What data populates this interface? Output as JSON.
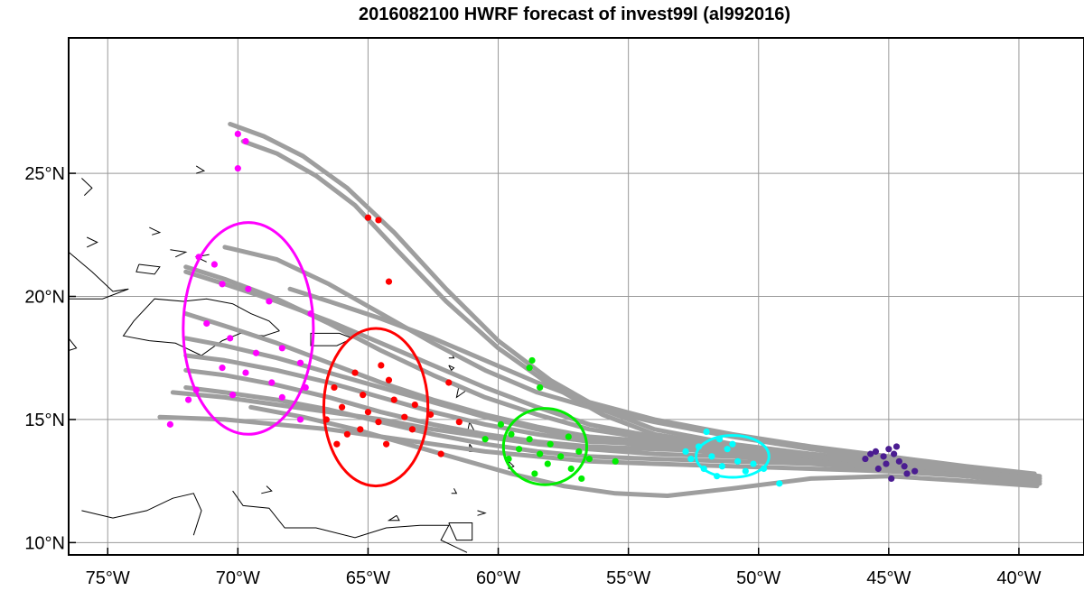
{
  "title": "2016082100 HWRF forecast of invest99l (al992016)",
  "map": {
    "lon_range": [
      -76.5,
      -37.5
    ],
    "lat_range": [
      9.5,
      30.5
    ],
    "x_ticks": [
      {
        "value": -75,
        "label": "75°W"
      },
      {
        "value": -70,
        "label": "70°W"
      },
      {
        "value": -65,
        "label": "65°W"
      },
      {
        "value": -60,
        "label": "60°W"
      },
      {
        "value": -55,
        "label": "55°W"
      },
      {
        "value": -50,
        "label": "50°W"
      },
      {
        "value": -45,
        "label": "45°W"
      },
      {
        "value": -40,
        "label": "40°W"
      }
    ],
    "y_ticks": [
      {
        "value": 10,
        "label": "10°N"
      },
      {
        "value": 15,
        "label": "15°N"
      },
      {
        "value": 20,
        "label": "20°N"
      },
      {
        "value": 25,
        "label": "25°N"
      }
    ],
    "grid": true,
    "colors": {
      "track": "#9e9e9e",
      "grid": "#999999",
      "coast": "#000000",
      "day1": "#4b1d91",
      "day2": "#00ffff",
      "day3": "#00ee00",
      "day4": "#ff0000",
      "day5": "#ff00ff"
    }
  },
  "tracks": [
    [
      [
        -39.2,
        12.6
      ],
      [
        -42,
        12.9
      ],
      [
        -45,
        13.3
      ],
      [
        -48,
        13.6
      ],
      [
        -51,
        14.0
      ],
      [
        -54,
        14.6
      ],
      [
        -56,
        15.4
      ],
      [
        -58,
        16.6
      ],
      [
        -60,
        18.2
      ],
      [
        -62,
        20.3
      ],
      [
        -64,
        22.6
      ],
      [
        -65.8,
        24.4
      ],
      [
        -67.5,
        25.7
      ],
      [
        -69,
        26.5
      ],
      [
        -70.3,
        27.0
      ]
    ],
    [
      [
        -39.3,
        12.5
      ],
      [
        -42,
        12.8
      ],
      [
        -45,
        13.2
      ],
      [
        -48,
        13.5
      ],
      [
        -51,
        13.9
      ],
      [
        -54,
        14.4
      ],
      [
        -56,
        15.2
      ],
      [
        -58,
        16.4
      ],
      [
        -60,
        17.9
      ],
      [
        -62,
        19.8
      ],
      [
        -64,
        22.0
      ],
      [
        -65.5,
        23.7
      ],
      [
        -67,
        24.9
      ],
      [
        -68.5,
        25.8
      ],
      [
        -69.8,
        26.3
      ]
    ],
    [
      [
        -39.4,
        12.7
      ],
      [
        -42,
        13.0
      ],
      [
        -45,
        13.4
      ],
      [
        -48,
        13.8
      ],
      [
        -51,
        14.3
      ],
      [
        -54,
        14.9
      ],
      [
        -56.5,
        15.5
      ],
      [
        -58.5,
        16.1
      ],
      [
        -60.5,
        17.0
      ],
      [
        -62.5,
        18.1
      ],
      [
        -64.5,
        19.3
      ],
      [
        -66.5,
        20.5
      ],
      [
        -68.5,
        21.5
      ],
      [
        -70.5,
        22.0
      ]
    ],
    [
      [
        -39.2,
        12.4
      ],
      [
        -42,
        12.7
      ],
      [
        -45,
        13.1
      ],
      [
        -48,
        13.4
      ],
      [
        -51,
        13.8
      ],
      [
        -54,
        14.2
      ],
      [
        -56.5,
        14.6
      ],
      [
        -58.5,
        15.2
      ],
      [
        -60.5,
        15.9
      ],
      [
        -62.5,
        16.8
      ],
      [
        -64.5,
        17.8
      ],
      [
        -66.5,
        18.9
      ],
      [
        -68.5,
        19.9
      ],
      [
        -70.5,
        20.7
      ],
      [
        -72,
        21.2
      ]
    ],
    [
      [
        -39.3,
        12.6
      ],
      [
        -42,
        12.9
      ],
      [
        -45,
        13.3
      ],
      [
        -48,
        13.6
      ],
      [
        -51,
        13.9
      ],
      [
        -54,
        14.1
      ],
      [
        -56.5,
        14.3
      ],
      [
        -58.5,
        14.7
      ],
      [
        -60.5,
        15.2
      ],
      [
        -62.5,
        15.8
      ],
      [
        -64.5,
        16.5
      ],
      [
        -66.5,
        17.3
      ],
      [
        -68.5,
        18.1
      ],
      [
        -70.5,
        18.8
      ],
      [
        -72,
        19.3
      ]
    ],
    [
      [
        -39.4,
        12.5
      ],
      [
        -42,
        12.8
      ],
      [
        -45,
        13.2
      ],
      [
        -48,
        13.5
      ],
      [
        -51,
        13.8
      ],
      [
        -54,
        14.0
      ],
      [
        -56.5,
        14.1
      ],
      [
        -58.5,
        14.4
      ],
      [
        -60.5,
        14.8
      ],
      [
        -62.5,
        15.3
      ],
      [
        -64.5,
        15.9
      ],
      [
        -66.5,
        16.5
      ],
      [
        -68.5,
        17.0
      ],
      [
        -70.5,
        17.4
      ],
      [
        -72,
        17.6
      ]
    ],
    [
      [
        -39.2,
        12.7
      ],
      [
        -42,
        13.0
      ],
      [
        -45,
        13.3
      ],
      [
        -48,
        13.5
      ],
      [
        -51,
        13.7
      ],
      [
        -54,
        13.8
      ],
      [
        -56.5,
        13.9
      ],
      [
        -58.5,
        14.1
      ],
      [
        -60.5,
        14.4
      ],
      [
        -62.5,
        14.8
      ],
      [
        -64.5,
        15.3
      ],
      [
        -66.5,
        15.9
      ],
      [
        -68.5,
        16.4
      ],
      [
        -70.5,
        16.8
      ],
      [
        -72,
        17.0
      ]
    ],
    [
      [
        -39.3,
        12.4
      ],
      [
        -42,
        12.7
      ],
      [
        -45,
        13.0
      ],
      [
        -48,
        13.2
      ],
      [
        -51,
        13.3
      ],
      [
        -54,
        13.4
      ],
      [
        -56.5,
        13.5
      ],
      [
        -58.5,
        13.7
      ],
      [
        -60.5,
        14.0
      ],
      [
        -62.5,
        14.4
      ],
      [
        -64.5,
        14.9
      ],
      [
        -66.5,
        15.4
      ],
      [
        -68.5,
        15.8
      ],
      [
        -70.5,
        16.1
      ],
      [
        -72,
        16.3
      ]
    ],
    [
      [
        -39.4,
        12.6
      ],
      [
        -42,
        12.8
      ],
      [
        -45,
        13.1
      ],
      [
        -48,
        13.3
      ],
      [
        -51,
        13.5
      ],
      [
        -54,
        13.6
      ],
      [
        -56.5,
        13.8
      ],
      [
        -58.5,
        14.0
      ],
      [
        -60.5,
        14.3
      ],
      [
        -62.5,
        14.6
      ],
      [
        -64.5,
        15.0
      ],
      [
        -66.5,
        15.3
      ],
      [
        -68.5,
        15.6
      ],
      [
        -70.5,
        15.9
      ],
      [
        -72.5,
        16.1
      ]
    ],
    [
      [
        -39.2,
        12.5
      ],
      [
        -42,
        12.7
      ],
      [
        -45,
        12.9
      ],
      [
        -48,
        13.0
      ],
      [
        -51,
        13.1
      ],
      [
        -54,
        13.2
      ],
      [
        -56.5,
        13.3
      ],
      [
        -58.5,
        13.5
      ],
      [
        -60.5,
        13.7
      ],
      [
        -62.5,
        14.0
      ],
      [
        -64.5,
        14.3
      ],
      [
        -66.5,
        14.6
      ],
      [
        -68.5,
        14.8
      ],
      [
        -70.5,
        15.0
      ],
      [
        -73,
        15.1
      ]
    ],
    [
      [
        -39.3,
        12.3
      ],
      [
        -42,
        12.5
      ],
      [
        -45,
        12.7
      ],
      [
        -48,
        12.6
      ],
      [
        -51,
        12.2
      ],
      [
        -53.5,
        11.9
      ],
      [
        -55.5,
        12.0
      ],
      [
        -57.5,
        12.3
      ],
      [
        -59.5,
        12.8
      ],
      [
        -61.5,
        13.4
      ],
      [
        -63.5,
        14.0
      ],
      [
        -65.5,
        14.6
      ],
      [
        -67.5,
        15.1
      ],
      [
        -69.5,
        15.5
      ]
    ],
    [
      [
        -39.4,
        12.8
      ],
      [
        -42,
        13.1
      ],
      [
        -45,
        13.5
      ],
      [
        -48,
        13.9
      ],
      [
        -51,
        14.4
      ],
      [
        -54,
        15.0
      ],
      [
        -56.5,
        15.7
      ],
      [
        -58.5,
        16.5
      ],
      [
        -60.5,
        17.4
      ],
      [
        -62.5,
        18.3
      ],
      [
        -64.5,
        19.1
      ],
      [
        -66.5,
        19.8
      ],
      [
        -68,
        20.3
      ]
    ],
    [
      [
        -39.2,
        12.6
      ],
      [
        -42,
        12.9
      ],
      [
        -45,
        13.2
      ],
      [
        -48,
        13.5
      ],
      [
        -51,
        13.9
      ],
      [
        -54,
        14.3
      ],
      [
        -56.5,
        14.8
      ],
      [
        -58.5,
        15.5
      ],
      [
        -60.5,
        16.3
      ],
      [
        -62.5,
        17.2
      ],
      [
        -64.5,
        18.1
      ],
      [
        -66.5,
        19.0
      ],
      [
        -68.5,
        19.8
      ],
      [
        -70.5,
        20.5
      ],
      [
        -72,
        21.0
      ]
    ],
    [
      [
        -39.3,
        12.4
      ],
      [
        -42,
        12.7
      ],
      [
        -45,
        13.0
      ],
      [
        -48,
        13.3
      ],
      [
        -51,
        13.6
      ],
      [
        -54,
        13.9
      ],
      [
        -56.5,
        14.2
      ],
      [
        -58.5,
        14.6
      ],
      [
        -60.5,
        15.1
      ],
      [
        -62.5,
        15.7
      ],
      [
        -64.5,
        16.3
      ],
      [
        -66.5,
        16.9
      ],
      [
        -68.5,
        17.5
      ],
      [
        -70.5,
        18.0
      ],
      [
        -72,
        18.3
      ]
    ]
  ],
  "day1_points": [
    [
      -45,
      13.8
    ],
    [
      -44.8,
      13.6
    ],
    [
      -45.2,
      13.5
    ],
    [
      -45.5,
      13.7
    ],
    [
      -44.6,
      13.3
    ],
    [
      -45.9,
      13.4
    ],
    [
      -44.4,
      13.1
    ],
    [
      -45.1,
      13.2
    ],
    [
      -44.3,
      12.8
    ],
    [
      -44.9,
      12.6
    ],
    [
      -44,
      12.9
    ],
    [
      -45.4,
      13.0
    ],
    [
      -44.7,
      13.9
    ],
    [
      -45.7,
      13.6
    ]
  ],
  "day2_points": [
    [
      -52,
      14.5
    ],
    [
      -51.5,
      14.2
    ],
    [
      -52.3,
      13.9
    ],
    [
      -51.2,
      13.8
    ],
    [
      -51.8,
      13.5
    ],
    [
      -52.6,
      13.4
    ],
    [
      -50.8,
      13.3
    ],
    [
      -51.4,
      13.1
    ],
    [
      -52.1,
      13.0
    ],
    [
      -50.5,
      12.9
    ],
    [
      -51.6,
      12.7
    ],
    [
      -49.8,
      13.0
    ],
    [
      -50.2,
      13.2
    ],
    [
      -49.2,
      12.4
    ],
    [
      -51,
      14.0
    ],
    [
      -52.8,
      13.7
    ]
  ],
  "day3_points": [
    [
      -58.7,
      17.4
    ],
    [
      -58.8,
      17.1
    ],
    [
      -58.4,
      16.3
    ],
    [
      -59.5,
      14.4
    ],
    [
      -58.8,
      14.2
    ],
    [
      -58,
      14.0
    ],
    [
      -57.3,
      14.3
    ],
    [
      -59.2,
      13.8
    ],
    [
      -58.4,
      13.6
    ],
    [
      -57.6,
      13.5
    ],
    [
      -56.9,
      13.7
    ],
    [
      -59.6,
      13.4
    ],
    [
      -58.1,
      13.2
    ],
    [
      -57.2,
      13.0
    ],
    [
      -56.5,
      13.4
    ],
    [
      -55.5,
      13.3
    ],
    [
      -60.5,
      14.2
    ],
    [
      -56.8,
      12.6
    ],
    [
      -58.6,
      12.8
    ],
    [
      -59.9,
      14.8
    ]
  ],
  "day4_points": [
    [
      -65,
      23.2
    ],
    [
      -64.6,
      23.1
    ],
    [
      -64.2,
      20.6
    ],
    [
      -61.9,
      16.5
    ],
    [
      -64.5,
      17.2
    ],
    [
      -65.5,
      16.9
    ],
    [
      -66.3,
      16.3
    ],
    [
      -64.2,
      16.6
    ],
    [
      -65.2,
      16.0
    ],
    [
      -64,
      15.8
    ],
    [
      -63.2,
      15.6
    ],
    [
      -66,
      15.5
    ],
    [
      -65,
      15.3
    ],
    [
      -63.6,
      15.1
    ],
    [
      -62.6,
      15.2
    ],
    [
      -66.6,
      15.0
    ],
    [
      -64.6,
      14.9
    ],
    [
      -63.3,
      14.6
    ],
    [
      -65.8,
      14.4
    ],
    [
      -64.3,
      14.0
    ],
    [
      -61.5,
      14.9
    ],
    [
      -66.2,
      14.0
    ],
    [
      -62.2,
      13.6
    ],
    [
      -65.3,
      14.6
    ]
  ],
  "day5_points": [
    [
      -70,
      26.6
    ],
    [
      -69.7,
      26.3
    ],
    [
      -70,
      25.2
    ],
    [
      -71.5,
      21.6
    ],
    [
      -70.9,
      21.3
    ],
    [
      -70.6,
      20.5
    ],
    [
      -69.6,
      20.3
    ],
    [
      -68.8,
      19.8
    ],
    [
      -67.2,
      19.3
    ],
    [
      -71.2,
      18.9
    ],
    [
      -70.3,
      18.3
    ],
    [
      -69.3,
      17.7
    ],
    [
      -68.3,
      17.9
    ],
    [
      -67.6,
      17.3
    ],
    [
      -70.6,
      17.1
    ],
    [
      -69.7,
      16.9
    ],
    [
      -68.7,
      16.5
    ],
    [
      -71.6,
      16.2
    ],
    [
      -70.2,
      16.0
    ],
    [
      -68.3,
      15.9
    ],
    [
      -67.4,
      16.3
    ],
    [
      -71.9,
      15.8
    ],
    [
      -72.6,
      14.8
    ],
    [
      -67.6,
      15.0
    ]
  ],
  "ellipses": [
    {
      "day": "day2",
      "cx": -51,
      "cy": 13.5,
      "rx": 1.4,
      "ry": 0.85,
      "rot": 0
    },
    {
      "day": "day3",
      "cx": -58.2,
      "cy": 13.9,
      "rx": 1.6,
      "ry": 1.55,
      "rot": 0
    },
    {
      "day": "day4",
      "cx": -64.7,
      "cy": 15.5,
      "rx": 2.0,
      "ry": 3.2,
      "rot": 0
    },
    {
      "day": "day5",
      "cx": -69.6,
      "cy": 18.7,
      "rx": 2.5,
      "ry": 4.3,
      "rot": 0
    }
  ]
}
